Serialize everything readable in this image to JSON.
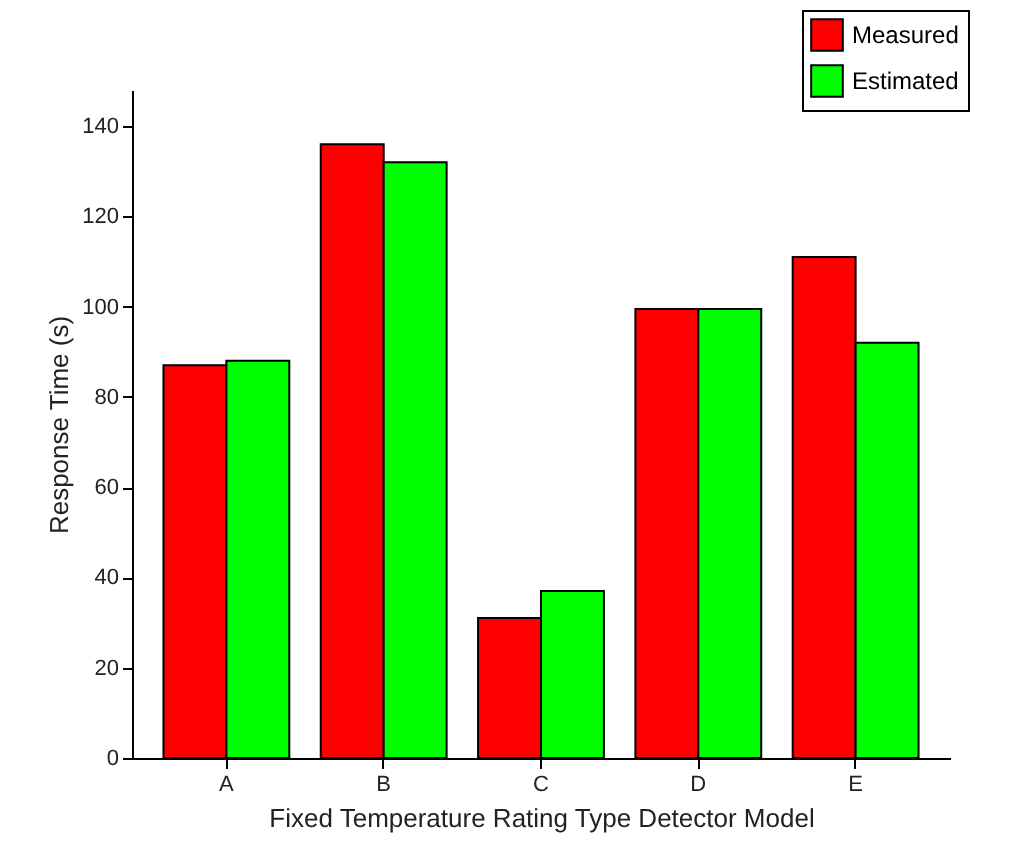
{
  "chart_data": {
    "type": "bar",
    "xlabel": "Fixed Temperature Rating Type Detector Model",
    "ylabel": "Response Time (s)",
    "categories": [
      "A",
      "B",
      "C",
      "D",
      "E"
    ],
    "series": [
      {
        "name": "Measured",
        "color": "#ff0000",
        "values": [
          87,
          136,
          31,
          99.5,
          111
        ]
      },
      {
        "name": "Estimated",
        "color": "#00ff00",
        "values": [
          88,
          132,
          37,
          99.5,
          92
        ]
      }
    ],
    "ylim": [
      0,
      148
    ],
    "yticks": [
      0,
      20,
      40,
      60,
      80,
      100,
      120,
      140
    ],
    "grid": false,
    "legend": "top right"
  }
}
